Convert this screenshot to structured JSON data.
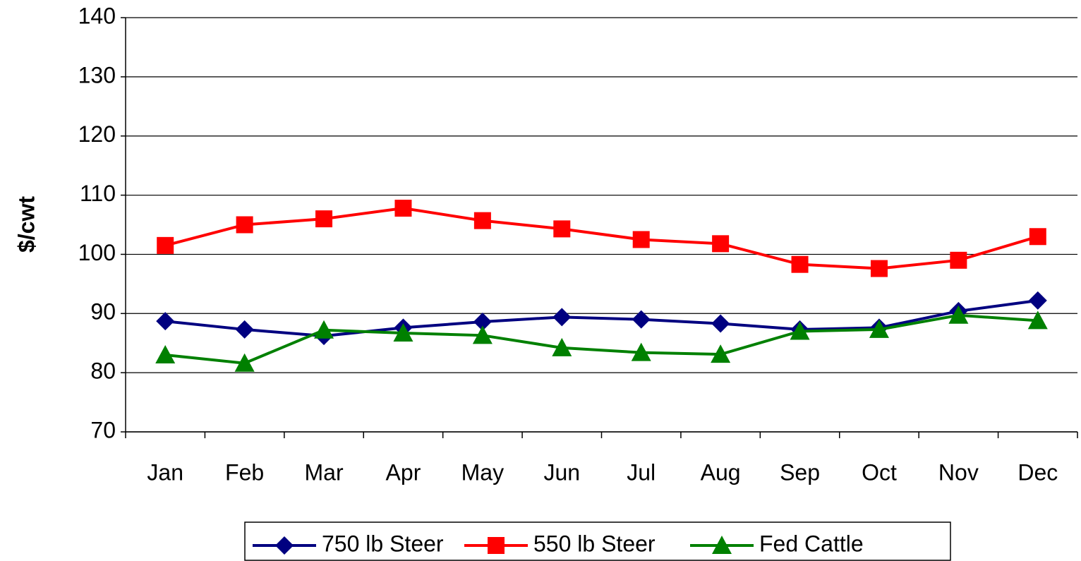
{
  "chart_data": {
    "type": "line",
    "y_label": "$/cwt",
    "categories": [
      "Jan",
      "Feb",
      "Mar",
      "Apr",
      "May",
      "Jun",
      "Jul",
      "Aug",
      "Sep",
      "Oct",
      "Nov",
      "Dec"
    ],
    "series": [
      {
        "name": "750 lb Steer",
        "color": "#000080",
        "marker": "diamond",
        "values": [
          88.7,
          87.3,
          86.2,
          87.6,
          88.6,
          89.4,
          89.0,
          88.3,
          87.3,
          87.6,
          90.4,
          92.2
        ]
      },
      {
        "name": "550 lb Steer",
        "color": "#ff0000",
        "marker": "square",
        "values": [
          101.5,
          105.0,
          106.0,
          107.8,
          105.7,
          104.3,
          102.5,
          101.8,
          98.3,
          97.6,
          99.0,
          103.0
        ]
      },
      {
        "name": "Fed Cattle",
        "color": "#008000",
        "marker": "triangle",
        "values": [
          83.0,
          81.6,
          87.2,
          86.7,
          86.3,
          84.2,
          83.4,
          83.1,
          87.0,
          87.3,
          89.7,
          88.8
        ]
      }
    ],
    "ylim": [
      70,
      140
    ],
    "yticks": [
      70,
      80,
      90,
      100,
      110,
      120,
      130,
      140
    ],
    "grid": true,
    "legend": "bottom"
  }
}
